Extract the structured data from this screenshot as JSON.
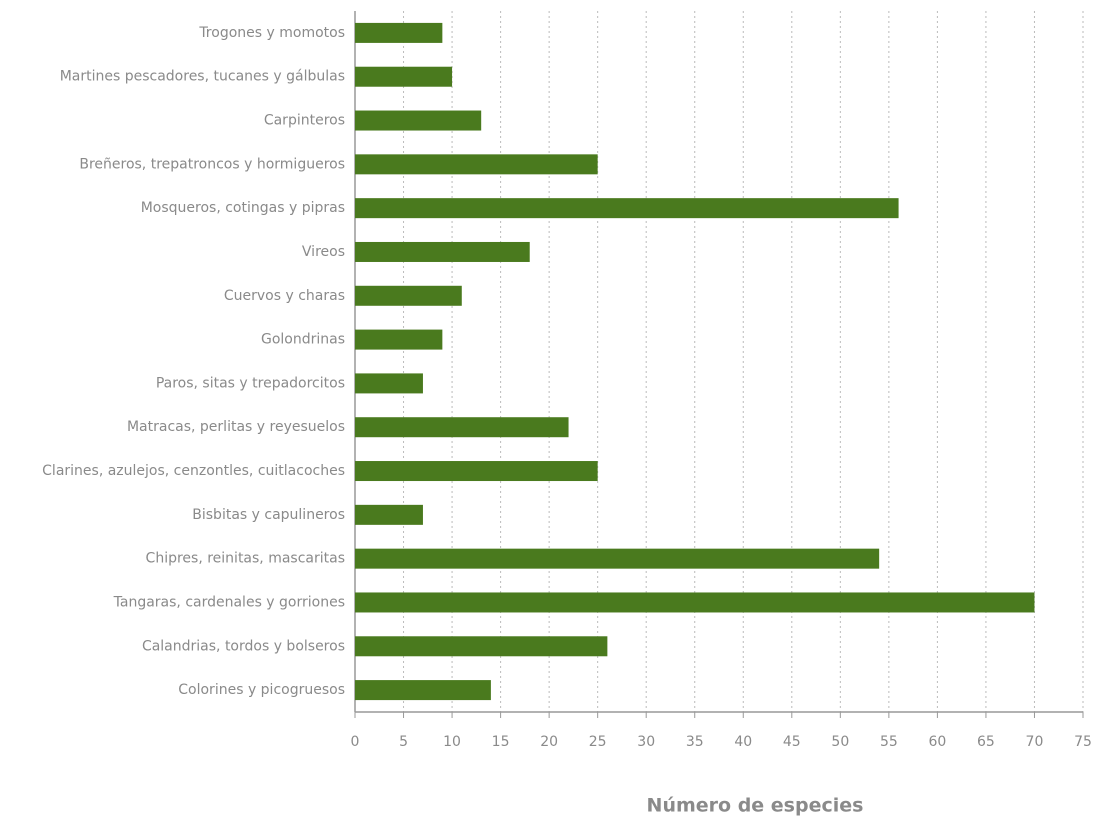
{
  "chart_data": {
    "type": "bar",
    "orientation": "horizontal",
    "x_label": "Número de especies",
    "categories": [
      "Trogones y momotos",
      "Martines pescadores, tucanes y gálbulas",
      "Carpinteros",
      "Breñeros, trepatroncos y hormigueros",
      "Mosqueros, cotingas y pipras",
      "Vireos",
      "Cuervos y charas",
      "Golondrinas",
      "Paros, sitas y trepadorcitos",
      "Matracas, perlitas y reyesuelos",
      "Clarines, azulejos, cenzontles, cuitlacoches",
      "Bisbitas y capulineros",
      "Chipres, reinitas, mascaritas",
      "Tangaras, cardenales y gorriones",
      "Calandrias, tordos y bolseros",
      "Colorines y picogruesos"
    ],
    "values": [
      9,
      10,
      13,
      25,
      56,
      18,
      11,
      9,
      7,
      22,
      25,
      7,
      54,
      70,
      26,
      14
    ],
    "color": "#4a7a1e",
    "xlim": [
      0,
      75
    ],
    "xticks": [
      0,
      5,
      10,
      15,
      20,
      25,
      30,
      35,
      40,
      45,
      50,
      55,
      60,
      65,
      70,
      75
    ],
    "grid": true
  }
}
